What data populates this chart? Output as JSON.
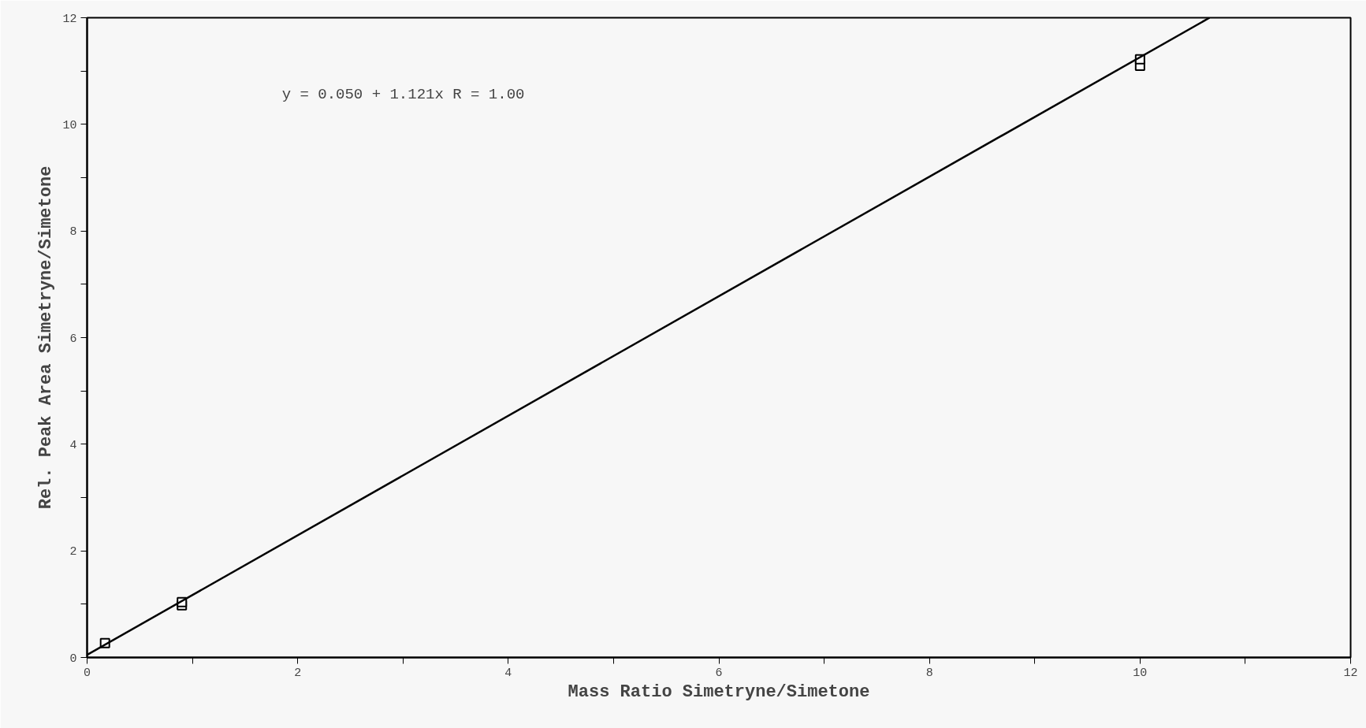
{
  "chart_data": {
    "type": "scatter",
    "xlabel": "Mass Ratio Simetryne/Simetone",
    "ylabel": "Rel. Peak Area Simetryne/Simetone",
    "annotations": [
      "y = 0.050 + 1.121x   R = 1.00"
    ],
    "series": [
      {
        "color": "#000000",
        "marker": "square",
        "x": [
          0.17,
          0.9,
          0.9,
          10,
          10
        ],
        "values": [
          0.27,
          0.98,
          1.04,
          11.1,
          11.22
        ]
      },
      {
        "type": "line",
        "color": "#000000",
        "marker": "none",
        "line_style": "solid",
        "x": [
          0,
          10.66
        ],
        "values": [
          0.05,
          12.0
        ]
      }
    ],
    "xlim": [
      0,
      12
    ],
    "ylim": [
      0,
      12
    ],
    "xticks": [
      0,
      {
        "value": 1,
        "label": null
      },
      2,
      {
        "value": 3,
        "label": null
      },
      4,
      {
        "value": 5,
        "label": null
      },
      6,
      {
        "value": 7,
        "label": null
      },
      8,
      {
        "value": 9,
        "label": null
      },
      10,
      {
        "value": 11,
        "label": null
      },
      12
    ],
    "yticks": [
      0,
      {
        "value": 1,
        "label": null
      },
      2,
      {
        "value": 3,
        "label": null
      },
      4,
      {
        "value": 5,
        "label": null
      },
      6,
      {
        "value": 7,
        "label": null
      },
      8,
      {
        "value": 9,
        "label": null
      },
      10,
      {
        "value": 11,
        "label": null
      },
      12
    ],
    "grid": false
  }
}
